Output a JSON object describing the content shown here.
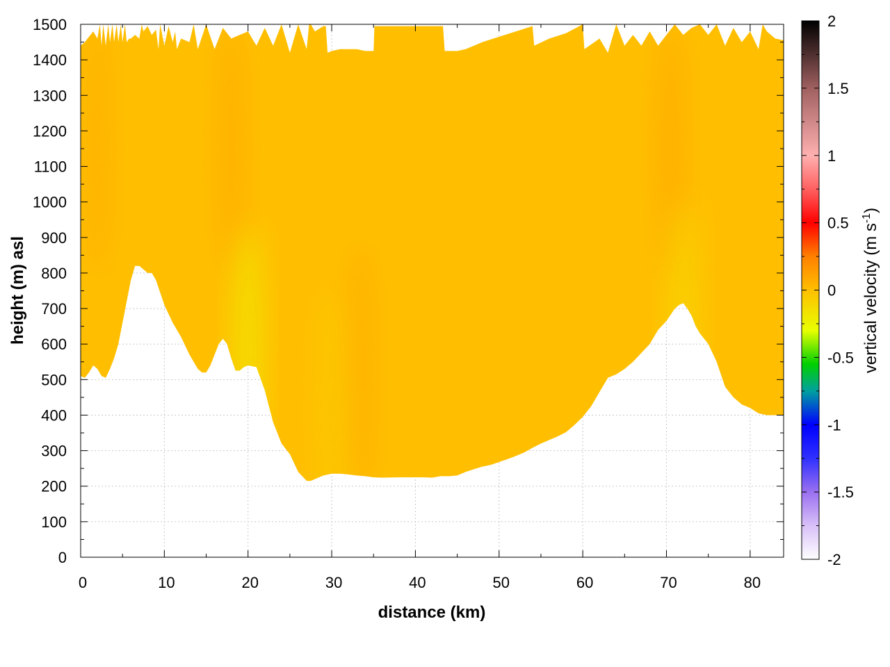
{
  "chart_data": {
    "type": "heatmap",
    "title": "",
    "xlabel": "distance (km)",
    "ylabel": "height (m) asl",
    "xlim": [
      0,
      84
    ],
    "ylim": [
      0,
      1500
    ],
    "x_ticks": [
      0,
      10,
      20,
      30,
      40,
      50,
      60,
      70,
      80
    ],
    "y_ticks": [
      0,
      100,
      200,
      300,
      400,
      500,
      600,
      700,
      800,
      900,
      1000,
      1100,
      1200,
      1300,
      1400,
      1500
    ],
    "grid": true,
    "base_color": "#ffbf00",
    "terrain": {
      "x": [
        0,
        0.5,
        1,
        1.5,
        2,
        2.5,
        3,
        3.5,
        4,
        4.5,
        5,
        5.5,
        6,
        6.5,
        7,
        7.5,
        8,
        8.5,
        9,
        10,
        11,
        12,
        13,
        14,
        14.5,
        15,
        15.5,
        16,
        16.5,
        17,
        17.5,
        18,
        18.5,
        19,
        19.5,
        20,
        21,
        22,
        23,
        24,
        25,
        26,
        27,
        27.5,
        28,
        29,
        30,
        31,
        32,
        33,
        34,
        35,
        36,
        38,
        40,
        41,
        42,
        43,
        44,
        45,
        46,
        47,
        48,
        49,
        50,
        51,
        52,
        53,
        54,
        55,
        56,
        57,
        58,
        59,
        60,
        61,
        62,
        63,
        64,
        65,
        66,
        67,
        68,
        69,
        70,
        71,
        71.5,
        72,
        72.5,
        73,
        73.5,
        74,
        75,
        76,
        77,
        78,
        79,
        80,
        81,
        82,
        82.5,
        83,
        83.5,
        84
      ],
      "height": [
        510,
        505,
        520,
        540,
        530,
        510,
        505,
        530,
        560,
        600,
        660,
        720,
        780,
        820,
        820,
        810,
        800,
        800,
        780,
        710,
        660,
        620,
        570,
        530,
        520,
        520,
        540,
        570,
        600,
        615,
        600,
        560,
        525,
        525,
        535,
        540,
        535,
        470,
        380,
        320,
        290,
        240,
        215,
        215,
        220,
        230,
        235,
        235,
        233,
        230,
        228,
        225,
        224,
        225,
        225,
        225,
        224,
        228,
        228,
        230,
        240,
        248,
        255,
        260,
        268,
        276,
        285,
        295,
        308,
        320,
        330,
        340,
        352,
        372,
        395,
        425,
        465,
        505,
        515,
        530,
        550,
        575,
        600,
        640,
        665,
        700,
        710,
        715,
        700,
        680,
        650,
        630,
        600,
        550,
        480,
        450,
        430,
        420,
        405,
        400,
        400,
        400,
        400,
        400
      ]
    },
    "top_edge": {
      "x": [
        0,
        0.5,
        1,
        1.5,
        2,
        2.3,
        2.5,
        2.7,
        3,
        3.3,
        3.5,
        3.8,
        4,
        4.3,
        4.5,
        4.8,
        5,
        5.3,
        5.5,
        5.8,
        6,
        6.5,
        7,
        7.3,
        7.5,
        8,
        8.5,
        9,
        9.3,
        9.5,
        10,
        10.5,
        11,
        11.3,
        11.5,
        12,
        13,
        13.5,
        14,
        15,
        16,
        17,
        18,
        19,
        20,
        21,
        22,
        23,
        24,
        25,
        26,
        27,
        27.3,
        27.5,
        28,
        29,
        29.3,
        29.5,
        30,
        31,
        32,
        33,
        34,
        35,
        35.1,
        36,
        38,
        40,
        42,
        43,
        43.3,
        43.5,
        45,
        46,
        47,
        48,
        50,
        52,
        54,
        54.2,
        56,
        58,
        60,
        60.2,
        62,
        63,
        64,
        65,
        66,
        67,
        68,
        69,
        70,
        71,
        72,
        73,
        74,
        75,
        76,
        77,
        78,
        79,
        80,
        81,
        81.5,
        82,
        83,
        84
      ],
      "height": [
        1440,
        1450,
        1465,
        1480,
        1460,
        1500,
        1440,
        1500,
        1440,
        1500,
        1450,
        1500,
        1450,
        1500,
        1450,
        1500,
        1450,
        1500,
        1450,
        1460,
        1460,
        1470,
        1460,
        1500,
        1480,
        1495,
        1470,
        1485,
        1430,
        1500,
        1440,
        1495,
        1450,
        1480,
        1430,
        1460,
        1450,
        1500,
        1430,
        1500,
        1430,
        1490,
        1460,
        1470,
        1480,
        1440,
        1490,
        1440,
        1500,
        1420,
        1500,
        1430,
        1500,
        1500,
        1480,
        1495,
        1495,
        1420,
        1425,
        1430,
        1430,
        1430,
        1425,
        1425,
        1495,
        1495,
        1495,
        1495,
        1495,
        1495,
        1495,
        1425,
        1425,
        1430,
        1440,
        1450,
        1465,
        1480,
        1495,
        1440,
        1460,
        1475,
        1500,
        1430,
        1460,
        1420,
        1500,
        1440,
        1470,
        1440,
        1480,
        1440,
        1470,
        1500,
        1470,
        1490,
        1500,
        1470,
        1500,
        1440,
        1490,
        1450,
        1480,
        1430,
        1500,
        1480,
        1460,
        1455
      ],
      "notes_ignored": []
    },
    "anomalies": [
      {
        "x": 2.0,
        "y": 1150,
        "value": 0.08
      },
      {
        "x": 18.0,
        "y": 1150,
        "value": 0.09
      },
      {
        "x": 20.0,
        "y": 580,
        "value": -0.25
      },
      {
        "x": 33.5,
        "y": 540,
        "value": 0.08
      },
      {
        "x": 70.5,
        "y": 1150,
        "value": 0.1
      },
      {
        "x": 72.0,
        "y": 650,
        "value": -0.15
      },
      {
        "x": 30.0,
        "y": 400,
        "value": -0.06
      }
    ],
    "colorbar": {
      "label": "vertical velocity (m s",
      "label_superscript": "-1",
      "label_close": ")",
      "min": -2,
      "max": 2,
      "ticks": [
        2,
        1.5,
        1,
        0.5,
        0,
        -0.5,
        -1,
        -1.5,
        -2
      ],
      "tick_labels": [
        "2",
        "1.5",
        "1",
        "0.5",
        "0",
        "-0.5",
        "-1",
        "-1.5",
        "-2"
      ],
      "stops": [
        {
          "v": -2.0,
          "color": "#ffffff"
        },
        {
          "v": -1.75,
          "color": "#d8c0f8"
        },
        {
          "v": -1.5,
          "color": "#9a70f0"
        },
        {
          "v": -1.25,
          "color": "#3030ff"
        },
        {
          "v": -1.0,
          "color": "#0000ff"
        },
        {
          "v": -0.75,
          "color": "#00a0a0"
        },
        {
          "v": -0.55,
          "color": "#00d000"
        },
        {
          "v": -0.3,
          "color": "#e8ff00"
        },
        {
          "v": 0.0,
          "color": "#ffbf00"
        },
        {
          "v": 0.25,
          "color": "#ff8000"
        },
        {
          "v": 0.5,
          "color": "#ff0000"
        },
        {
          "v": 0.75,
          "color": "#ff6060"
        },
        {
          "v": 1.0,
          "color": "#ffb0b0"
        },
        {
          "v": 1.5,
          "color": "#a06060"
        },
        {
          "v": 2.0,
          "color": "#000000"
        }
      ]
    }
  }
}
